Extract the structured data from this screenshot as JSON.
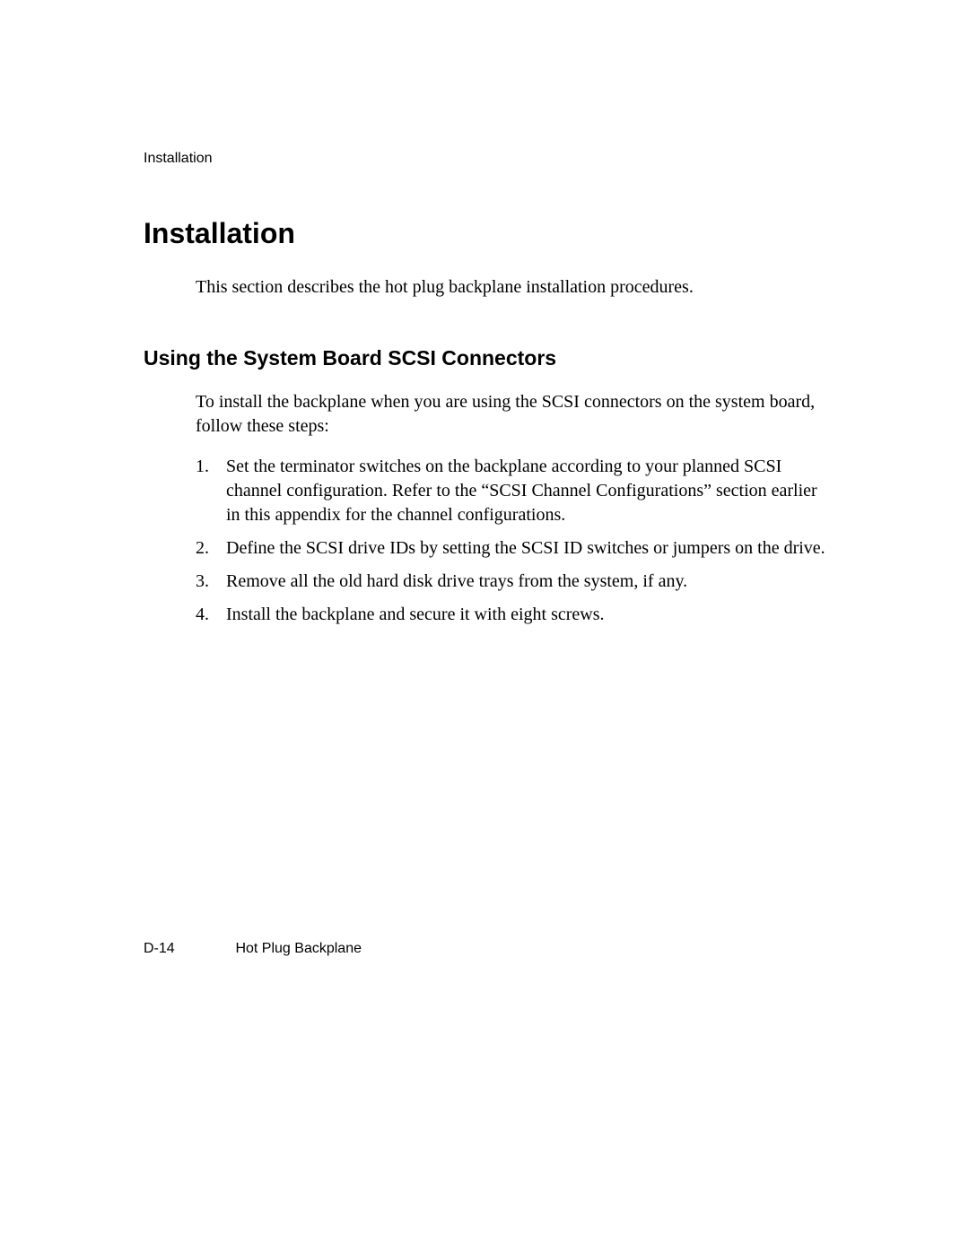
{
  "running_header": "Installation",
  "main_heading": "Installation",
  "intro_text": "This section describes the hot plug backplane installation procedures.",
  "sub_heading": "Using the System Board SCSI Connectors",
  "body_text": "To install the backplane when you are using the SCSI connectors on the system board, follow these steps:",
  "steps": [
    {
      "num": "1.",
      "text": "Set the terminator switches on the backplane according to your planned SCSI channel configuration. Refer to the “SCSI Channel Configurations” section earlier in this appendix for the channel configurations."
    },
    {
      "num": "2.",
      "text": "Define the SCSI drive IDs by setting the SCSI ID switches or jumpers on the drive."
    },
    {
      "num": "3.",
      "text": "Remove all the old hard disk drive trays from the system, if any."
    },
    {
      "num": "4.",
      "text": "Install the backplane and secure it with eight screws."
    }
  ],
  "footer_page": "D-14",
  "footer_title": "Hot Plug Backplane"
}
